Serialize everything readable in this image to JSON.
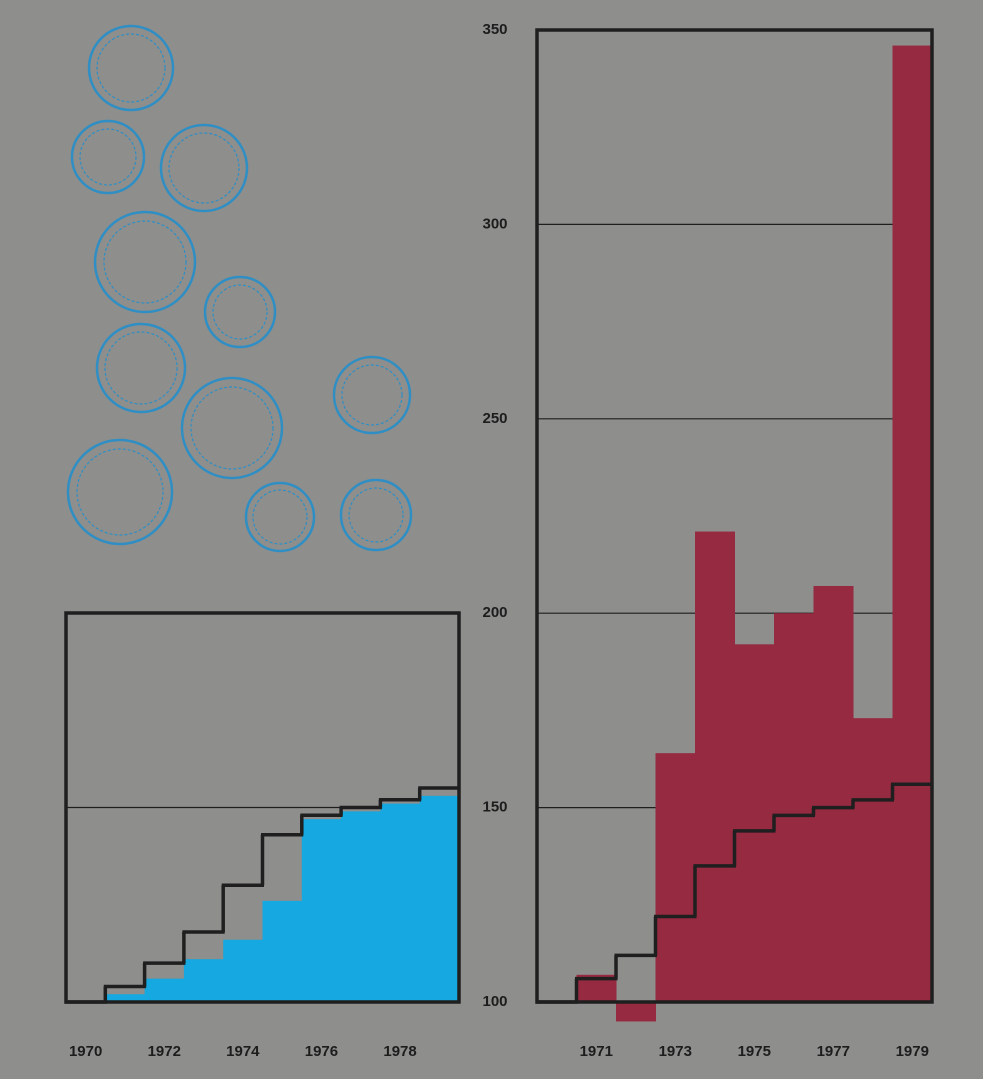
{
  "chart_data": [
    {
      "type": "step",
      "categories": [
        "1970",
        null,
        "1972",
        null,
        "1974",
        null,
        "1976",
        null,
        "1978",
        null
      ],
      "series": [
        {
          "color": "#16a8e0",
          "style": "area",
          "values": [
            100,
            102,
            106,
            111,
            116,
            126,
            147,
            149,
            151,
            153
          ]
        },
        {
          "color": "#1f1f1f",
          "style": "line",
          "values": [
            100,
            104,
            110,
            118,
            130,
            143,
            148,
            150,
            152,
            155
          ]
        }
      ],
      "ylim": [
        100,
        200
      ],
      "grid_lines": [
        150
      ]
    },
    {
      "type": "step",
      "categories": [
        null,
        "1971",
        null,
        "1973",
        null,
        "1975",
        null,
        "1977",
        null,
        "1979"
      ],
      "series": [
        {
          "color": "#962a40",
          "style": "area",
          "values": [
            100,
            107,
            95,
            164,
            221,
            192,
            200,
            207,
            173,
            346
          ]
        },
        {
          "color": "#1f1f1f",
          "style": "line",
          "values": [
            100,
            106,
            112,
            122,
            135,
            144,
            148,
            150,
            152,
            156
          ]
        }
      ],
      "ylim": [
        100,
        350
      ],
      "yticks": [
        100,
        150,
        200,
        250,
        300,
        350
      ],
      "grid": true
    }
  ]
}
